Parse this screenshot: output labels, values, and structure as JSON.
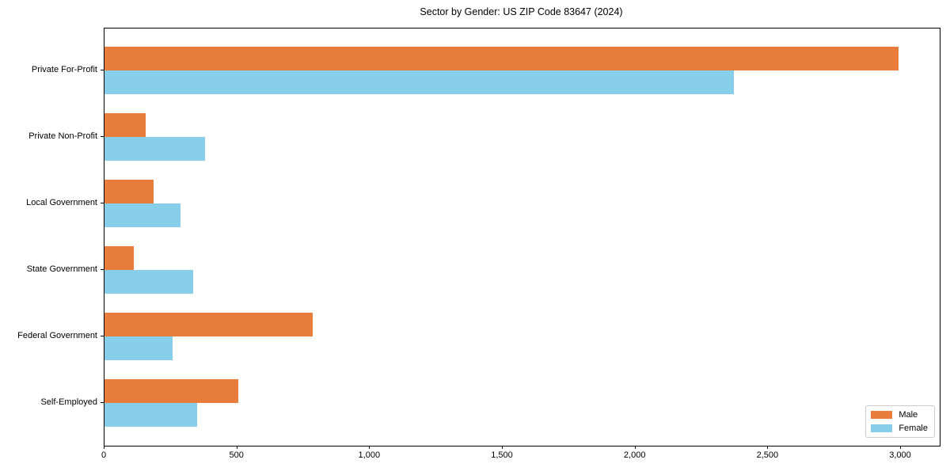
{
  "chart_data": {
    "type": "bar",
    "orientation": "horizontal",
    "title": "Sector by Gender: US ZIP Code 83647 (2024)",
    "categories": [
      "Private For-Profit",
      "Private Non-Profit",
      "Local Government",
      "State Government",
      "Federal Government",
      "Self-Employed"
    ],
    "series": [
      {
        "name": "Male",
        "color": "#E87D3B",
        "values": [
          2990,
          155,
          185,
          110,
          785,
          505
        ]
      },
      {
        "name": "Female",
        "color": "#87CEEB",
        "values": [
          2370,
          380,
          285,
          335,
          255,
          350
        ]
      }
    ],
    "xlabel": "",
    "ylabel": "",
    "xlim": [
      0,
      3146
    ],
    "xticks": [
      {
        "value": 0,
        "label": "0"
      },
      {
        "value": 500,
        "label": "500"
      },
      {
        "value": 1000,
        "label": "1,000"
      },
      {
        "value": 1500,
        "label": "1,500"
      },
      {
        "value": 2000,
        "label": "2,000"
      },
      {
        "value": 2500,
        "label": "2,500"
      },
      {
        "value": 3000,
        "label": "3,000"
      }
    ],
    "grid": false,
    "legend_position": "lower right",
    "plot_border_color": "#000000",
    "background_color": "#ffffff"
  }
}
